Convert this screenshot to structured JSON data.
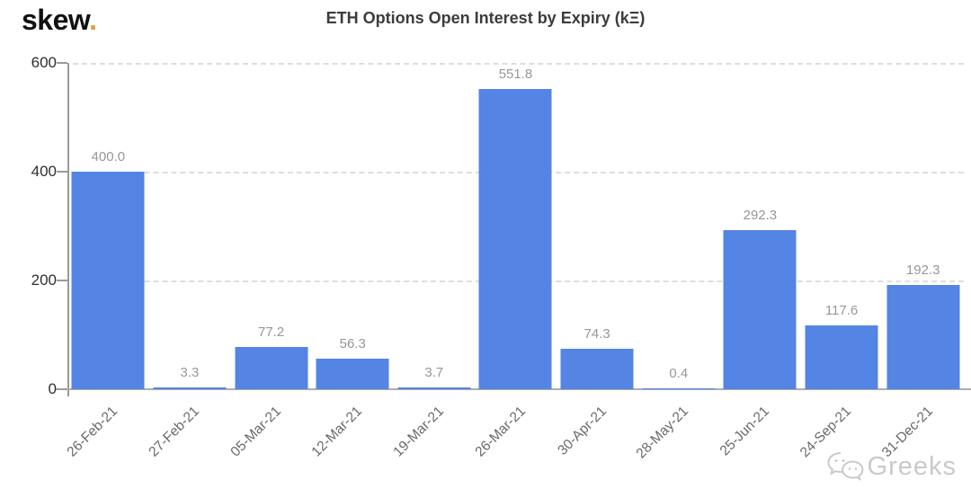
{
  "logo": {
    "text": "skew",
    "dot": "."
  },
  "title": "ETH Options Open Interest by Expiry (kΞ)",
  "watermark": {
    "text": "Greeks",
    "icon": "wechat-icon"
  },
  "chart_data": {
    "type": "bar",
    "title": "ETH Options Open Interest by Expiry (kΞ)",
    "categories": [
      "26-Feb-21",
      "27-Feb-21",
      "05-Mar-21",
      "12-Mar-21",
      "19-Mar-21",
      "26-Mar-21",
      "30-Apr-21",
      "28-May-21",
      "25-Jun-21",
      "24-Sep-21",
      "31-Dec-21"
    ],
    "values": [
      400.0,
      3.3,
      77.2,
      56.3,
      3.7,
      551.8,
      74.3,
      0.4,
      292.3,
      117.6,
      192.3
    ],
    "value_labels": [
      "400.0",
      "3.3",
      "77.2",
      "56.3",
      "3.7",
      "551.8",
      "74.3",
      "0.4",
      "292.3",
      "117.6",
      "192.3"
    ],
    "xlabel": "",
    "ylabel": "",
    "ylim": [
      0,
      600
    ],
    "yticks": [
      0,
      200,
      400,
      600
    ],
    "ytick_labels": [
      "0",
      "200",
      "400",
      "600"
    ],
    "grid": "horizontal-dashed",
    "legend": "none",
    "bar_color": "#5484e4",
    "label_color": "#979797"
  }
}
